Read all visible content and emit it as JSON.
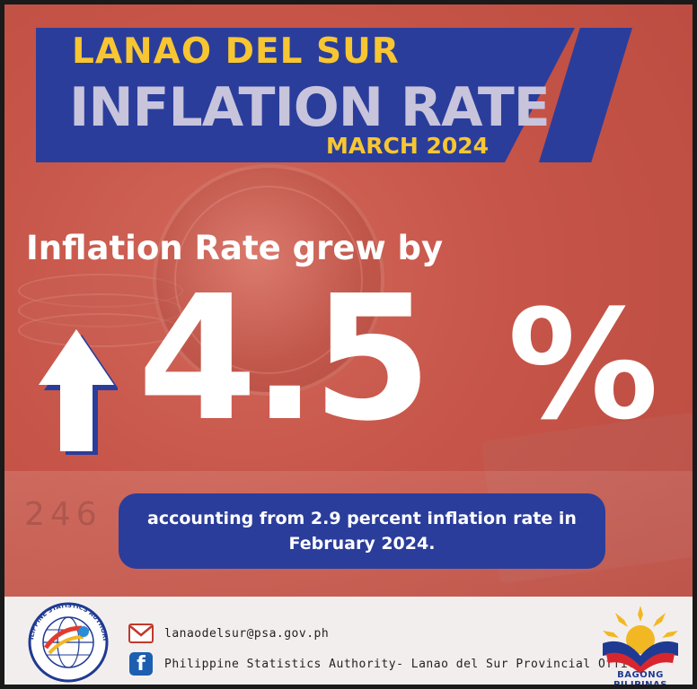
{
  "header": {
    "line1": "LANAO DEL SUR",
    "line2": "INFLATION RATE",
    "line3": "MARCH 2024"
  },
  "headline": "Inflation Rate grew by",
  "value": "4.5",
  "unit": "%",
  "subtext": "accounting from 2.9 percent inflation rate in February 2024.",
  "footer": {
    "logo_text": "PHILIPPINE STATISTICS AUTHORITY",
    "email": "lanaodelsur@psa.gov.ph",
    "facebook": "Philippine Statistics Authority- Lanao del Sur Provincial Office",
    "bp_label": "BAGONG PILIPINAS"
  },
  "colors": {
    "background": "#c65448",
    "accent_blue": "#2b3d9b",
    "accent_yellow": "#f7c631",
    "footer": "#f3eeee"
  },
  "icons": [
    "up-arrow-icon",
    "mail-icon",
    "facebook-icon"
  ]
}
